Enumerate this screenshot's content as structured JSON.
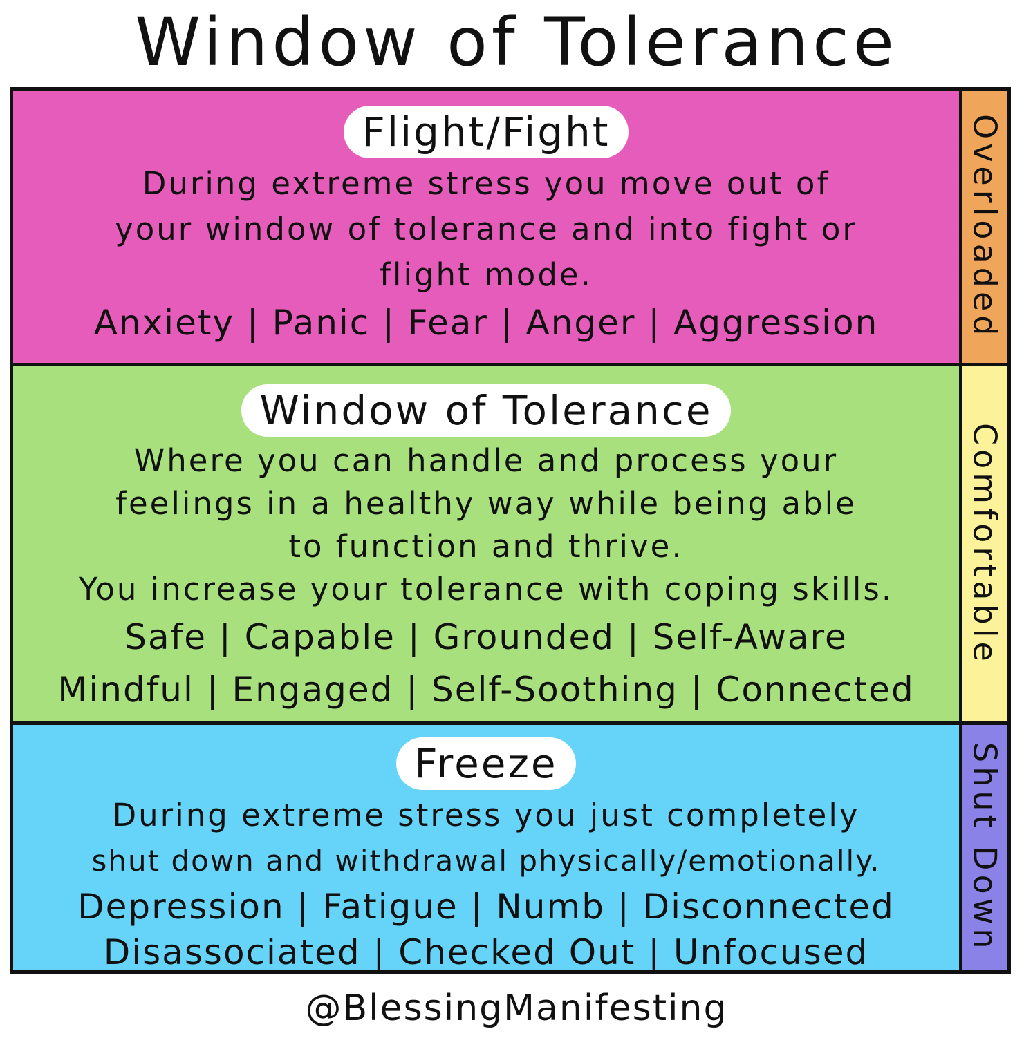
{
  "title": "Window of Tolerance",
  "zones": [
    {
      "heading": "Flight/Fight",
      "description": [
        "During extreme stress you move out of",
        "your window of tolerance and into fight or",
        "flight mode."
      ],
      "traits": [
        "Anxiety | Panic | Fear | Anger | Aggression"
      ],
      "side_label": "Overloaded",
      "color": "#e65cbb",
      "side_color": "#f0a65a"
    },
    {
      "heading": "Window of Tolerance",
      "description": [
        "Where you can handle and process your",
        "feelings in a healthy way while being able",
        "to function and thrive.",
        "You increase your tolerance with coping skills."
      ],
      "traits": [
        "Safe | Capable | Grounded | Self-Aware",
        "Mindful | Engaged | Self-Soothing | Connected"
      ],
      "side_label": "Comfortable",
      "color": "#a8e07d",
      "side_color": "#fbf29a"
    },
    {
      "heading": "Freeze",
      "description": [
        "During extreme stress you just completely",
        "shut down and withdrawal physically/emotionally."
      ],
      "traits": [
        "Depression | Fatigue | Numb | Disconnected",
        "Disassociated | Checked Out | Unfocused"
      ],
      "side_label": "Shut Down",
      "color": "#66d4f8",
      "side_color": "#8a82e6"
    }
  ],
  "credit": "@BlessingManifesting"
}
